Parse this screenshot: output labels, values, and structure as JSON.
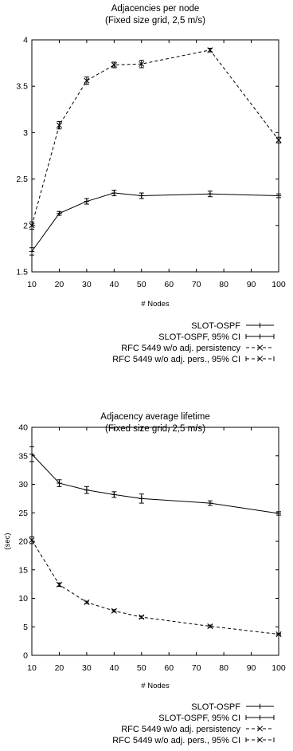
{
  "chart_data": [
    {
      "type": "line",
      "title": "Adjacencies per node",
      "subtitle": "(Fixed size grid, 2,5 m/s)",
      "xlabel": "# Nodes",
      "ylabel": "",
      "xlim": [
        10,
        100
      ],
      "ylim": [
        1.5,
        4
      ],
      "xticks": [
        10,
        20,
        30,
        40,
        50,
        60,
        70,
        80,
        90,
        100
      ],
      "yticks": [
        1.5,
        2,
        2.5,
        3,
        3.5,
        4
      ],
      "ytick_labels": [
        "1.5",
        "2",
        "2.5",
        "3",
        "3.5",
        "4"
      ],
      "grid": false,
      "legend_position": "below",
      "x": [
        10,
        20,
        30,
        40,
        50,
        75,
        100
      ],
      "series": [
        {
          "name": "SLOT-OSPF",
          "ci_name": "SLOT-OSPF, 95% CI",
          "style": "solid",
          "marker": "plus",
          "values": [
            1.72,
            2.13,
            2.26,
            2.35,
            2.32,
            2.34,
            2.32
          ],
          "ci": [
            0.04,
            0.02,
            0.03,
            0.03,
            0.03,
            0.03,
            0.02
          ]
        },
        {
          "name": "RFC 5449 w/o adj. persistency",
          "ci_name": "RFC 5449 w/o adj. pers., 95% CI",
          "style": "dashed",
          "marker": "x",
          "values": [
            2.0,
            3.08,
            3.56,
            3.73,
            3.74,
            3.89,
            2.92
          ],
          "ci": [
            0.04,
            0.04,
            0.04,
            0.03,
            0.04,
            0.02,
            0.03
          ]
        }
      ]
    },
    {
      "type": "line",
      "title": "Adjacency average lifetime",
      "subtitle": "(Fixed size grid, 2,5 m/s)",
      "xlabel": "# Nodes",
      "ylabel": "(sec)",
      "xlim": [
        10,
        100
      ],
      "ylim": [
        0,
        40
      ],
      "xticks": [
        10,
        20,
        30,
        40,
        50,
        60,
        70,
        80,
        90,
        100
      ],
      "yticks": [
        0,
        5,
        10,
        15,
        20,
        25,
        30,
        35,
        40
      ],
      "ytick_labels": [
        "0",
        "5",
        "10",
        "15",
        "20",
        "25",
        "30",
        "35",
        "40"
      ],
      "grid": false,
      "legend_position": "below",
      "x": [
        10,
        20,
        30,
        40,
        50,
        75,
        100
      ],
      "series": [
        {
          "name": "SLOT-OSPF",
          "ci_name": "SLOT-OSPF, 95% CI",
          "style": "solid",
          "marker": "plus",
          "values": [
            35.3,
            30.2,
            29.0,
            28.2,
            27.5,
            26.7,
            24.9
          ],
          "ci": [
            1.3,
            0.6,
            0.6,
            0.5,
            0.8,
            0.4,
            0.3
          ]
        },
        {
          "name": "RFC 5449 w/o adj. persistency",
          "ci_name": "RFC 5449 w/o adj. pers., 95% CI",
          "style": "dashed",
          "marker": "x",
          "values": [
            20.2,
            12.4,
            9.3,
            7.8,
            6.7,
            5.1,
            3.7
          ],
          "ci": [
            0.6,
            0.3,
            0.2,
            0.2,
            0.2,
            0.2,
            0.1
          ]
        }
      ]
    }
  ]
}
